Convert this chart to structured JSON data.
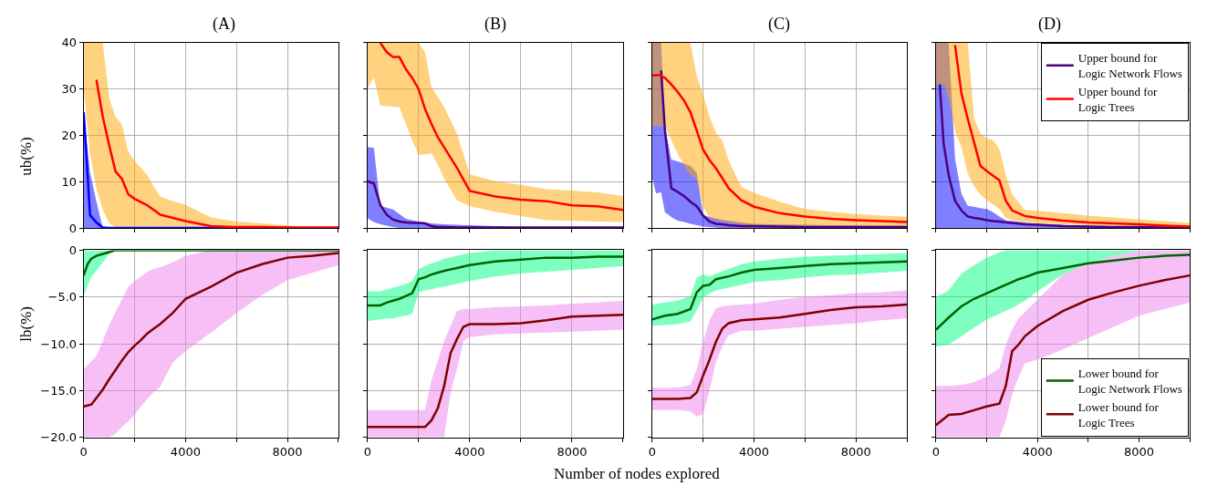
{
  "chart_data": [
    {
      "type": "line",
      "title": "(A)",
      "ylabel": "ub(%)",
      "xlim": [
        0,
        10000
      ],
      "xticks": [
        0,
        {
          "value": 2000,
          "label": null
        },
        4000,
        {
          "value": 6000,
          "label": null
        },
        8000,
        {
          "value": 10000,
          "label": null
        }
      ],
      "ylim": [
        0,
        40
      ],
      "yticks": [
        0,
        10,
        20,
        30,
        40
      ],
      "grid": true,
      "tick_labels": "y",
      "series": [
        {
          "color": "#0000ff",
          "x": [
            0,
            250,
            500,
            750,
            1000,
            2000,
            4000,
            6000,
            8000,
            10000
          ],
          "values": [
            25,
            2.8,
            1.2,
            0.1,
            0,
            0,
            0,
            0,
            0,
            0
          ],
          "lower": [
            0,
            0,
            0,
            0,
            0,
            0,
            0,
            0,
            0,
            0
          ],
          "upper": [
            25,
            12,
            5.7,
            0,
            0,
            0,
            0,
            0,
            0,
            0
          ]
        },
        {
          "color": "#ff0000",
          "x": [
            0,
            250,
            500,
            750,
            1000,
            1250,
            1500,
            1750,
            2000,
            2250,
            2500,
            2750,
            3000,
            3500,
            4000,
            5000,
            6000,
            7000,
            8000,
            9000,
            10000
          ],
          "values": [
            null,
            null,
            32,
            24,
            17.9,
            12.2,
            10.6,
            7.3,
            6.3,
            5.6,
            4.9,
            3.9,
            2.9,
            2.2,
            1.5,
            0.4,
            0.2,
            0.2,
            0.1,
            0.1,
            0.1
          ],
          "lower": [
            30,
            16,
            8.6,
            3.9,
            1.1,
            0,
            0,
            0,
            0,
            0,
            0,
            0,
            0,
            0,
            0,
            0,
            0,
            0,
            0,
            0,
            0
          ],
          "upper": [
            40,
            40,
            40,
            40,
            28,
            24,
            22.4,
            16.5,
            14.5,
            13,
            11.4,
            9,
            6.8,
            5.8,
            5.0,
            2.3,
            1.4,
            1.0,
            0.6,
            0,
            0
          ]
        }
      ]
    },
    {
      "type": "line",
      "title": "(B)",
      "xlim": [
        0,
        10000
      ],
      "xticks": [
        0,
        {
          "value": 2000,
          "label": null
        },
        4000,
        {
          "value": 6000,
          "label": null
        },
        8000,
        {
          "value": 10000,
          "label": null
        }
      ],
      "ylim": [
        0,
        40
      ],
      "yticks": [
        0,
        10,
        20,
        30,
        40
      ],
      "grid": true,
      "tick_labels": false,
      "series": [
        {
          "color": "#4b0082",
          "x": [
            0,
            250,
            500,
            750,
            1000,
            1250,
            1500,
            1750,
            2000,
            2250,
            2500,
            2750,
            3000,
            3500,
            4000,
            5000,
            6000,
            7000,
            8000,
            9000,
            10000
          ],
          "values": [
            10.1,
            9.6,
            5.0,
            2.9,
            1.8,
            1.4,
            1.2,
            1.1,
            1.1,
            1.0,
            0.4,
            0.2,
            0.2,
            0.1,
            0.1,
            0.1,
            0.1,
            0.1,
            0.1,
            0.1,
            0.1
          ],
          "lower": [
            2.1,
            1.3,
            0.8,
            0.5,
            0.2,
            0,
            0,
            0,
            0,
            0,
            0,
            0,
            0,
            0,
            0,
            0,
            0,
            0,
            0,
            0,
            0
          ],
          "upper": [
            17.5,
            17.3,
            4.8,
            4.4,
            4.0,
            3.0,
            2.0,
            1.7,
            1.4,
            1.2,
            1.0,
            0.9,
            0.8,
            0.7,
            0.6,
            0.4,
            0.2,
            0.1,
            0.1,
            0,
            0
          ]
        },
        {
          "color": "#ff0000",
          "x": [
            0,
            250,
            500,
            750,
            1000,
            1250,
            1500,
            1750,
            2000,
            2250,
            2500,
            2750,
            3000,
            3500,
            4000,
            5000,
            6000,
            7000,
            8000,
            9000,
            10000
          ],
          "values": [
            null,
            null,
            40,
            38,
            36.9,
            36.9,
            34.3,
            32.4,
            30,
            25.7,
            22.5,
            19.6,
            17.4,
            13,
            8,
            6.8,
            6.1,
            5.8,
            4.9,
            4.7,
            3.9
          ],
          "lower": [
            30.2,
            32.5,
            26.5,
            26.3,
            26.2,
            26.1,
            22.4,
            18.9,
            15.8,
            15.9,
            16.1,
            13.7,
            10.6,
            6,
            4.7,
            3.5,
            2.6,
            1.7,
            1.6,
            1.4,
            1.3
          ],
          "upper": [
            40,
            40,
            40,
            40,
            40,
            40,
            40,
            40,
            40,
            38,
            30.5,
            28.3,
            26.1,
            20.4,
            11.6,
            10.1,
            9.3,
            8.4,
            8.1,
            7.7,
            6.9
          ]
        }
      ]
    },
    {
      "type": "line",
      "title": "(C)",
      "xlim": [
        0,
        10000
      ],
      "xticks": [
        0,
        {
          "value": 2000,
          "label": null
        },
        4000,
        {
          "value": 6000,
          "label": null
        },
        8000,
        {
          "value": 10000,
          "label": null
        }
      ],
      "ylim": [
        0,
        40
      ],
      "yticks": [
        0,
        10,
        20,
        30,
        40
      ],
      "grid": true,
      "tick_labels": false,
      "series": [
        {
          "color": "#4b0082",
          "x": [
            0,
            150,
            350,
            500,
            750,
            1000,
            1250,
            1500,
            1750,
            2000,
            2250,
            2500,
            2750,
            3000,
            3500,
            4000,
            5000,
            6000,
            7000,
            8000,
            9000,
            10000
          ],
          "values": [
            null,
            null,
            34,
            21,
            8.6,
            7.8,
            6.9,
            5.7,
            4.7,
            2.7,
            1.4,
            0.9,
            0.8,
            0.6,
            0.4,
            0.4,
            0.3,
            0.2,
            0.2,
            0.2,
            0.2,
            0.2
          ],
          "lower": [
            10.7,
            7.5,
            7.7,
            3.4,
            2.4,
            1.6,
            1.3,
            0.9,
            0.6,
            0.3,
            0.2,
            0.1,
            0,
            0,
            0,
            0,
            0,
            0,
            0,
            0,
            0,
            0
          ],
          "upper": [
            40,
            40,
            40,
            22.1,
            14.8,
            14.4,
            13.9,
            13.4,
            11.9,
            2.8,
            2.4,
            2.1,
            1.8,
            1.6,
            1.2,
            0.9,
            0.8,
            0.7,
            0.6,
            0.6,
            0.5,
            0.5
          ]
        },
        {
          "color": "#ff0000",
          "x": [
            0,
            150,
            300,
            500,
            750,
            1000,
            1250,
            1500,
            1750,
            2000,
            2250,
            2500,
            2750,
            3000,
            3500,
            4000,
            5000,
            6000,
            7000,
            8000,
            9000,
            10000
          ],
          "values": [
            33,
            33,
            33,
            32.4,
            31,
            29.4,
            27.5,
            25,
            21,
            16.9,
            14.7,
            12.9,
            10.8,
            8.6,
            6,
            4.6,
            3.2,
            2.5,
            2,
            1.7,
            1.5,
            1.3
          ],
          "lower": [
            22,
            22,
            22,
            22,
            19,
            16,
            13.5,
            11.5,
            10.5,
            4.6,
            2.2,
            1.8,
            1.4,
            1.2,
            0.8,
            0.5,
            0.4,
            0.3,
            0.3,
            0.3,
            0.3,
            0.3
          ],
          "upper": [
            40,
            40,
            40,
            40,
            40,
            40,
            40,
            40,
            32.8,
            28.8,
            24.1,
            20.6,
            18.9,
            14.6,
            8.9,
            7.6,
            5.7,
            4.1,
            3.5,
            3.0,
            2.7,
            2.5
          ]
        }
      ]
    },
    {
      "type": "line",
      "title": "(D)",
      "xlim": [
        0,
        10000
      ],
      "xticks": [
        0,
        {
          "value": 2000,
          "label": null
        },
        4000,
        {
          "value": 6000,
          "label": null
        },
        8000,
        {
          "value": 10000,
          "label": null
        }
      ],
      "ylim": [
        0,
        40
      ],
      "yticks": [
        0,
        10,
        20,
        30,
        40
      ],
      "grid": true,
      "tick_labels": false,
      "legend": "top right",
      "series": [
        {
          "name": "Upper bound for Logic Network Flows",
          "color": "#4b0082",
          "x": [
            0,
            150,
            300,
            500,
            750,
            1000,
            1250,
            1500,
            1750,
            2000,
            2250,
            2500,
            2750,
            3000,
            3500,
            4000,
            5000,
            6000,
            7000,
            8000,
            9000,
            10000
          ],
          "values": [
            null,
            31,
            18.2,
            11.4,
            5.9,
            3.8,
            2.5,
            2.2,
            2.0,
            1.7,
            1.5,
            1.4,
            1.2,
            1.1,
            0.8,
            0.7,
            0.4,
            0.3,
            0.2,
            0.2,
            0.1,
            0.1
          ],
          "lower": [
            0,
            0,
            0,
            0,
            0,
            0,
            0,
            0,
            0,
            0,
            0,
            0,
            0,
            0,
            0,
            0,
            0,
            0,
            0,
            0,
            0,
            0
          ],
          "upper": [
            40,
            40,
            40,
            40,
            15,
            7.4,
            4.8,
            4.6,
            4.3,
            4.1,
            3.4,
            2.5,
            1.7,
            1.5,
            1.2,
            0.9,
            0.7,
            0.5,
            0.4,
            0.4,
            0.3,
            0.2
          ]
        },
        {
          "name": "Upper bound for Logic Trees",
          "color": "#ff0000",
          "x": [
            0,
            150,
            300,
            500,
            750,
            1000,
            1250,
            1500,
            1750,
            2000,
            2250,
            2500,
            2750,
            3000,
            3500,
            4000,
            5000,
            6000,
            7000,
            8000,
            9000,
            10000
          ],
          "values": [
            null,
            null,
            null,
            null,
            39.5,
            29.1,
            23.6,
            18.5,
            13.4,
            12.3,
            11.3,
            10.3,
            5.9,
            3.8,
            2.6,
            2.2,
            1.6,
            1.2,
            1.0,
            0.8,
            0.5,
            0.3
          ],
          "lower": [
            31,
            31,
            31,
            28,
            21,
            17.5,
            11.8,
            9,
            7.2,
            6.0,
            5.1,
            4.1,
            2.2,
            1.7,
            1.3,
            1.0,
            0.8,
            0.6,
            0.5,
            0.4,
            0.3,
            0.2
          ],
          "upper": [
            40,
            40,
            40,
            40,
            40,
            40,
            40,
            23.7,
            20.5,
            19.3,
            19.0,
            17,
            11.4,
            7.3,
            3.9,
            3.7,
            3.2,
            2.7,
            2.3,
            1.9,
            1.5,
            1.1
          ]
        }
      ]
    },
    {
      "type": "line",
      "ylabel": "lb(%)",
      "xlim": [
        0,
        10000
      ],
      "xticks": [
        0,
        {
          "value": 2000,
          "label": null
        },
        4000,
        {
          "value": 6000,
          "label": null
        },
        8000,
        {
          "value": 10000,
          "label": null
        }
      ],
      "ylim": [
        -20,
        0
      ],
      "yticks": [
        {
          "value": -20,
          "label": "−20.0"
        },
        {
          "value": -15,
          "label": "−15.0"
        },
        {
          "value": -10,
          "label": "−10.0"
        },
        {
          "value": -5,
          "label": "−5.0"
        },
        0
      ],
      "grid": true,
      "series": [
        {
          "color": "#006400",
          "x": [
            0,
            150,
            300,
            500,
            750,
            1000,
            1250,
            1500,
            1750,
            2000,
            2250,
            2500,
            2750,
            3000,
            3500,
            4000,
            5000,
            6000,
            7000,
            8000,
            9000,
            10000
          ],
          "values": [
            -2.7,
            -1.5,
            -0.9,
            -0.6,
            -0.4,
            -0.2,
            0,
            0,
            0,
            0,
            0,
            0,
            0,
            0,
            0,
            0,
            0,
            0,
            0,
            0,
            0,
            0
          ],
          "lower": [
            -4.9,
            -3.8,
            -2.8,
            -2.2,
            -1.3,
            -0.4,
            0,
            0,
            0,
            0,
            0,
            0,
            0,
            0,
            0,
            0,
            0,
            0,
            0,
            0,
            0,
            0
          ],
          "upper": [
            0,
            0,
            0,
            0,
            0,
            0,
            0,
            0,
            0,
            0,
            0,
            0,
            0,
            0,
            0,
            0,
            0,
            0,
            0,
            0,
            0,
            0
          ]
        },
        {
          "color": "#800000",
          "x": [
            0,
            150,
            300,
            500,
            750,
            1000,
            1250,
            1500,
            1750,
            2000,
            2250,
            2500,
            2750,
            3000,
            3500,
            4000,
            5000,
            6000,
            7000,
            8000,
            9000,
            10000
          ],
          "values": [
            -16.7,
            -16.6,
            -16.5,
            -15.8,
            -14.9,
            -13.8,
            -12.8,
            -11.8,
            -10.9,
            -10.2,
            -9.6,
            -8.9,
            -8.4,
            -7.9,
            -6.7,
            -5.2,
            -3.9,
            -2.4,
            -1.5,
            -0.8,
            -0.6,
            -0.3
          ],
          "lower": [
            -20,
            -20,
            -20,
            -20,
            -20,
            -20,
            -19.6,
            -18.9,
            -18.3,
            -17.6,
            -16.7,
            -15.9,
            -15.2,
            -14.6,
            -12,
            -10.8,
            -8.8,
            -6.7,
            -4.8,
            -3.2,
            -2.4,
            -1.6
          ],
          "upper": [
            -12.7,
            -12.3,
            -11.9,
            -11.3,
            -9.7,
            -8.0,
            -6.6,
            -5.3,
            -3.9,
            -3.3,
            -2.8,
            -2.3,
            -2.0,
            -1.8,
            -1.3,
            -0.6,
            0,
            0,
            0,
            0,
            0,
            0
          ]
        }
      ]
    },
    {
      "type": "line",
      "xlabel": "Number of nodes explored",
      "xlim": [
        0,
        10000
      ],
      "xticks": [
        0,
        {
          "value": 2000,
          "label": null
        },
        4000,
        {
          "value": 6000,
          "label": null
        },
        8000,
        {
          "value": 10000,
          "label": null
        }
      ],
      "ylim": [
        -20,
        0
      ],
      "yticks": [
        -20,
        -15,
        -10,
        -5,
        0
      ],
      "grid": true,
      "tick_labels": "x",
      "series": [
        {
          "color": "#006400",
          "x": [
            0,
            150,
            300,
            500,
            750,
            1000,
            1250,
            1500,
            1750,
            2000,
            2250,
            2500,
            2750,
            3000,
            3500,
            4000,
            5000,
            6000,
            7000,
            8000,
            9000,
            10000
          ],
          "values": [
            -5.9,
            -5.9,
            -5.9,
            -5.9,
            -5.6,
            -5.4,
            -5.2,
            -4.9,
            -4.6,
            -3.1,
            -2.9,
            -2.6,
            -2.4,
            -2.2,
            -1.9,
            -1.6,
            -1.2,
            -1.0,
            -0.8,
            -0.8,
            -0.7,
            -0.7
          ],
          "lower": [
            -7.6,
            -7.5,
            -7.5,
            -7.4,
            -7.3,
            -7.3,
            -7.1,
            -7.0,
            -6.8,
            -4.5,
            -4.3,
            -4.2,
            -4.0,
            -3.9,
            -3.6,
            -3.3,
            -2.8,
            -2.5,
            -2.3,
            -2.1,
            -1.9,
            -1.7
          ],
          "upper": [
            -4.4,
            -4.4,
            -4.4,
            -4.4,
            -4.2,
            -4.0,
            -3.8,
            -3.6,
            -3.3,
            -2.0,
            -1.7,
            -1.4,
            -1.2,
            -0.9,
            -0.6,
            -0.3,
            0,
            0,
            0,
            0,
            0,
            0
          ]
        },
        {
          "color": "#800000",
          "x": [
            0,
            500,
            1000,
            1500,
            2000,
            2250,
            2500,
            2750,
            3000,
            3250,
            3500,
            3750,
            4000,
            5000,
            6000,
            7000,
            8000,
            9000,
            10000
          ],
          "values": [
            -18.9,
            -18.9,
            -18.9,
            -18.9,
            -18.9,
            -18.9,
            -18.2,
            -16.9,
            -14.5,
            -11,
            -9.5,
            -8.2,
            -7.9,
            -7.9,
            -7.8,
            -7.5,
            -7.1,
            -7.0,
            -6.9
          ],
          "lower": [
            -20,
            -20,
            -20,
            -20,
            -20,
            -20,
            -20,
            -20,
            -20,
            -15.2,
            -12.7,
            -9.7,
            -9.3,
            -9.0,
            -8.9,
            -8.8,
            -8.7,
            -8.6,
            -8.5
          ],
          "upper": [
            -17.1,
            -17.1,
            -17.1,
            -17.1,
            -17.1,
            -17.1,
            -13.9,
            -11.8,
            -9.7,
            -8.1,
            -6.5,
            -6.3,
            -6.3,
            -6.1,
            -6.0,
            -5.9,
            -5.7,
            -5.6,
            -5.4
          ]
        }
      ]
    },
    {
      "type": "line",
      "xlim": [
        0,
        10000
      ],
      "xticks": [
        0,
        {
          "value": 2000,
          "label": null
        },
        4000,
        {
          "value": 6000,
          "label": null
        },
        8000,
        {
          "value": 10000,
          "label": null
        }
      ],
      "ylim": [
        -20,
        0
      ],
      "yticks": [
        -20,
        -15,
        -10,
        -5,
        0
      ],
      "grid": true,
      "tick_labels": "x",
      "series": [
        {
          "color": "#006400",
          "x": [
            0,
            500,
            1000,
            1500,
            1750,
            2000,
            2250,
            2500,
            3000,
            3500,
            4000,
            5000,
            6000,
            7000,
            8000,
            9000,
            10000
          ],
          "values": [
            -7.4,
            -7.0,
            -6.8,
            -6.3,
            -4.5,
            -3.8,
            -3.7,
            -3.1,
            -2.8,
            -2.4,
            -2.1,
            -1.9,
            -1.7,
            -1.5,
            -1.4,
            -1.3,
            -1.2
          ],
          "lower": [
            -8.1,
            -8.0,
            -7.9,
            -7.6,
            -6.4,
            -5.1,
            -4.6,
            -4.3,
            -4.0,
            -3.7,
            -3.4,
            -3.2,
            -2.9,
            -2.7,
            -2.6,
            -2.4,
            -2.2
          ],
          "upper": [
            -5.8,
            -5.6,
            -5.4,
            -4.9,
            -2.9,
            -2.6,
            -2.8,
            -2.5,
            -2.0,
            -1.5,
            -1.2,
            -0.9,
            -0.7,
            -0.6,
            -0.5,
            -0.4,
            -0.3
          ]
        },
        {
          "color": "#800000",
          "x": [
            0,
            500,
            1000,
            1500,
            1750,
            2000,
            2250,
            2500,
            2750,
            3000,
            3500,
            4000,
            5000,
            6000,
            7000,
            8000,
            9000,
            10000
          ],
          "values": [
            -15.9,
            -15.9,
            -15.9,
            -15.8,
            -15.2,
            -13.4,
            -11.7,
            -9.8,
            -8.4,
            -7.8,
            -7.5,
            -7.4,
            -7.2,
            -6.8,
            -6.4,
            -6.1,
            -6.0,
            -5.8
          ],
          "lower": [
            -17.1,
            -17.1,
            -17.1,
            -17.2,
            -17.8,
            -17.5,
            -15.0,
            -12.0,
            -10.3,
            -9.1,
            -8.6,
            -8.6,
            -8.4,
            -8.2,
            -8.0,
            -7.8,
            -7.5,
            -7.3
          ],
          "upper": [
            -14.7,
            -14.7,
            -14.7,
            -14.4,
            -12.7,
            -9.8,
            -7.5,
            -6.2,
            -6.0,
            -5.9,
            -5.8,
            -5.7,
            -5.3,
            -5.0,
            -4.8,
            -4.6,
            -4.5,
            -4.3
          ]
        }
      ]
    },
    {
      "type": "line",
      "xlim": [
        0,
        10000
      ],
      "xticks": [
        0,
        {
          "value": 2000,
          "label": null
        },
        4000,
        {
          "value": 6000,
          "label": null
        },
        8000,
        {
          "value": 10000,
          "label": null
        }
      ],
      "ylim": [
        -20,
        0
      ],
      "yticks": [
        -20,
        -15,
        -10,
        -5,
        0
      ],
      "grid": true,
      "tick_labels": "x",
      "legend": "bottom right",
      "series": [
        {
          "name": "Lower bound for Logic Network Flows",
          "color": "#006400",
          "x": [
            0,
            500,
            1000,
            1500,
            2000,
            2500,
            2750,
            3000,
            3250,
            3500,
            4000,
            5000,
            6000,
            7000,
            8000,
            9000,
            10000
          ],
          "values": [
            -8.5,
            -7.2,
            -6.0,
            -5.2,
            -4.6,
            -4.0,
            -3.7,
            -3.4,
            -3.1,
            -2.9,
            -2.4,
            -1.9,
            -1.4,
            -1.1,
            -0.8,
            -0.6,
            -0.5
          ],
          "lower": [
            -10.3,
            -10.1,
            -9.2,
            -8.3,
            -7.4,
            -6.8,
            -6.5,
            -6.2,
            -5.8,
            -5.4,
            -4.4,
            -2.6,
            -1.4,
            -0.6,
            -0.1,
            0,
            0
          ],
          "upper": [
            -5.0,
            -4.3,
            -2.5,
            -1.6,
            -0.8,
            -0.2,
            0,
            0,
            0,
            0,
            0,
            0,
            0,
            0,
            0,
            0,
            0
          ]
        },
        {
          "name": "Lower bound for Logic Trees",
          "color": "#800000",
          "x": [
            0,
            500,
            1000,
            1500,
            2000,
            2500,
            2750,
            3000,
            3250,
            3500,
            4000,
            5000,
            6000,
            7000,
            8000,
            9000,
            10000
          ],
          "values": [
            -18.7,
            -17.6,
            -17.5,
            -17.1,
            -16.7,
            -16.4,
            -14.5,
            -10.8,
            -10.1,
            -9.2,
            -8.1,
            -6.5,
            -5.3,
            -4.5,
            -3.8,
            -3.2,
            -2.7
          ],
          "lower": [
            -20,
            -20,
            -20,
            -20,
            -20,
            -20,
            -18.2,
            -15.4,
            -13.6,
            -12.1,
            -11.7,
            -10.6,
            -9.4,
            -8.2,
            -7.0,
            -6.3,
            -5.6
          ],
          "upper": [
            -14.5,
            -14.5,
            -14.4,
            -14.1,
            -13.5,
            -12.6,
            -10.1,
            -8.5,
            -7.3,
            -6.6,
            -5.3,
            -2.6,
            -1.4,
            -0.6,
            -0.1,
            0,
            0
          ]
        }
      ]
    }
  ]
}
